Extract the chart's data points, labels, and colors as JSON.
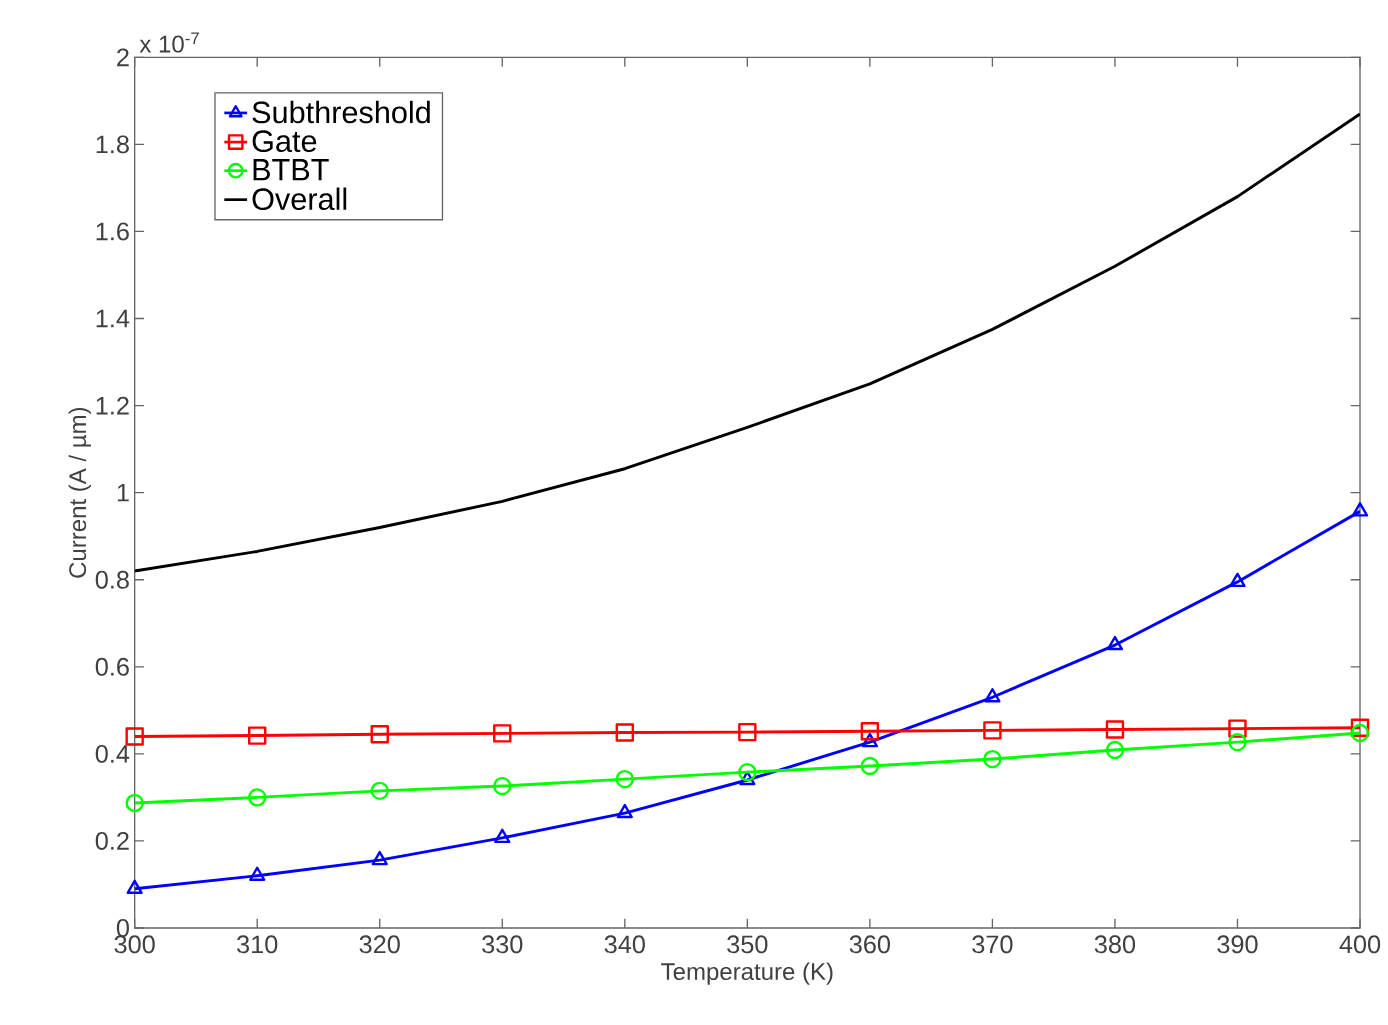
{
  "chart_data": {
    "type": "line",
    "xlabel": "Temperature (K)",
    "ylabel": "Current (A / µm)",
    "annotations": [
      "x 10$^{-7}$"
    ],
    "x": [
      300,
      310,
      320,
      330,
      340,
      350,
      360,
      370,
      380,
      390,
      400
    ],
    "series": [
      {
        "name": "Subthreshold",
        "color": "#0000ff",
        "marker": "triangle",
        "values": [
          0.09,
          0.12,
          0.156,
          0.207,
          0.264,
          0.34,
          0.427,
          0.53,
          0.65,
          0.795,
          0.957
        ]
      },
      {
        "name": "Gate",
        "color": "#ff0000",
        "marker": "square",
        "values": [
          0.44,
          0.442,
          0.445,
          0.447,
          0.449,
          0.45,
          0.452,
          0.454,
          0.456,
          0.458,
          0.46
        ]
      },
      {
        "name": "BTBT",
        "color": "#00ff00",
        "marker": "circle",
        "values": [
          0.287,
          0.3,
          0.315,
          0.326,
          0.342,
          0.358,
          0.372,
          0.388,
          0.409,
          0.427,
          0.448
        ]
      },
      {
        "name": "Overall",
        "color": "#000000",
        "marker": "none",
        "values": [
          0.82,
          0.865,
          0.92,
          0.98,
          1.055,
          1.15,
          1.25,
          1.375,
          1.52,
          1.68,
          1.87
        ]
      }
    ],
    "xlim": [
      300,
      400
    ],
    "xticks": [
      300,
      310,
      320,
      330,
      340,
      350,
      360,
      370,
      380,
      390,
      400
    ],
    "ylim": [
      0,
      2
    ],
    "yticks": [
      0,
      0.2,
      0.4,
      0.6,
      0.8,
      1,
      1.2,
      1.4,
      1.6,
      1.8,
      2
    ],
    "legend": "top left",
    "grid": false,
    "line_style": "solid"
  }
}
